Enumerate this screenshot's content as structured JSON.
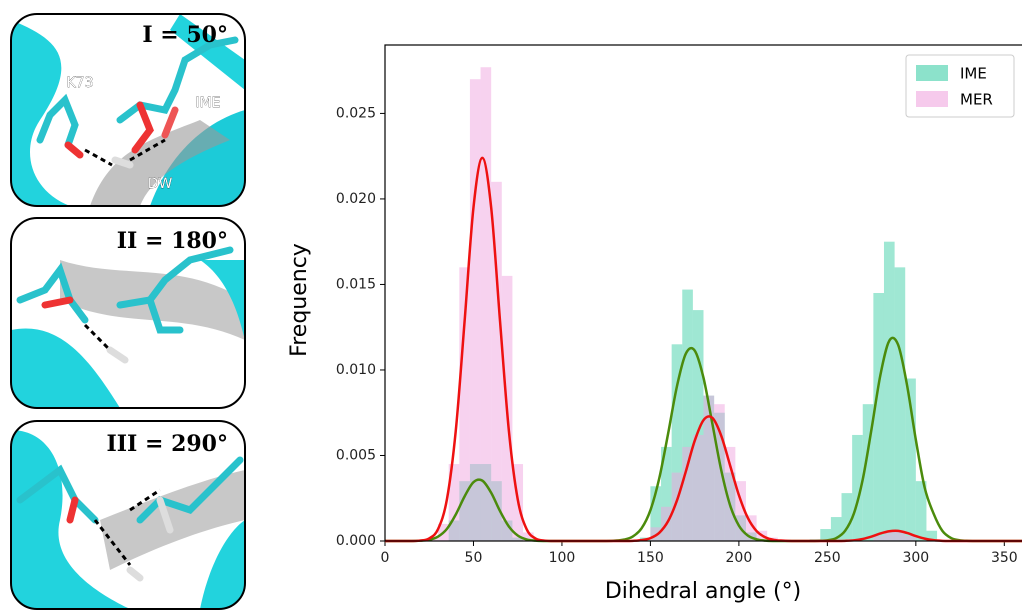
{
  "panels": [
    {
      "title": "I = 50°",
      "labels": [
        "K73",
        "IME",
        "DW"
      ]
    },
    {
      "title": "II = 180°"
    },
    {
      "title": "III = 290°"
    }
  ],
  "chart_data": {
    "type": "histogram",
    "xlabel": "Dihedral angle (°)",
    "ylabel": "Frequency",
    "xlim": [
      0,
      360
    ],
    "ylim": [
      0,
      0.029
    ],
    "xticks": [
      0,
      50,
      100,
      150,
      200,
      250,
      300,
      350
    ],
    "yticks": [
      {
        "value": 0,
        "label": "0.000"
      },
      0.005,
      {
        "value": 0.01,
        "label": "0.010"
      },
      0.015,
      {
        "value": 0.02,
        "label": "0.020"
      },
      0.025
    ],
    "legend": "upper right",
    "bins": [
      24,
      30,
      36,
      42,
      48,
      54,
      60,
      66,
      72,
      78,
      84,
      90,
      96,
      102,
      108,
      114,
      120,
      126,
      132,
      138,
      144,
      150,
      156,
      162,
      168,
      174,
      180,
      186,
      192,
      198,
      204,
      210,
      216,
      222,
      228,
      234,
      240,
      246,
      252,
      258,
      264,
      270,
      276,
      282,
      288,
      294,
      300,
      306,
      312
    ],
    "series": [
      {
        "name": "IME",
        "color": "#3fcfa8",
        "values": [
          0,
          0,
          0.0012,
          0.0035,
          0.0045,
          0.0045,
          0.0035,
          0.0012,
          0.0002,
          0,
          0,
          0,
          0,
          0,
          0,
          0,
          0,
          0,
          0,
          0,
          0.0002,
          0.0032,
          0.0055,
          0.0115,
          0.0147,
          0.0135,
          0.0085,
          0.0075,
          0.004,
          0.0015,
          0.0005,
          0,
          0,
          0,
          0,
          0,
          0.0001,
          0.0007,
          0.0014,
          0.0028,
          0.0062,
          0.008,
          0.0145,
          0.0175,
          0.016,
          0.0095,
          0.0035,
          0.0006
        ]
      },
      {
        "name": "MER",
        "color": "#f0a6e0",
        "values": [
          0.0002,
          0.001,
          0.0045,
          0.016,
          0.027,
          0.0277,
          0.021,
          0.0155,
          0.0045,
          0.0005,
          0,
          0,
          0,
          0,
          0,
          0,
          0,
          0,
          0,
          0,
          0,
          0.0008,
          0.002,
          0.004,
          0.0055,
          0.0062,
          0.0085,
          0.008,
          0.0055,
          0.0035,
          0.0015,
          0.0006,
          0.0002,
          0,
          0,
          0,
          0,
          0,
          0,
          0,
          0,
          0,
          0.0003,
          0.0006,
          0.0006,
          0.0003,
          0,
          0
        ]
      }
    ],
    "curves": {
      "x": [
        0,
        5,
        10,
        15,
        20,
        25,
        30,
        35,
        40,
        45,
        50,
        55,
        60,
        65,
        70,
        75,
        80,
        85,
        90,
        95,
        100,
        105,
        110,
        115,
        120,
        125,
        130,
        135,
        140,
        145,
        150,
        155,
        160,
        165,
        170,
        175,
        180,
        185,
        190,
        195,
        200,
        205,
        210,
        215,
        220,
        225,
        230,
        235,
        240,
        245,
        250,
        255,
        260,
        265,
        270,
        275,
        280,
        285,
        290,
        295,
        300,
        305,
        310,
        315,
        320,
        325,
        330,
        335,
        340,
        345,
        350,
        355,
        360
      ],
      "lines": [
        {
          "color": "#4b8b0c",
          "values": [
            0,
            0,
            0,
            0,
            2e-05,
            7e-05,
            0.00026,
            0.00071,
            0.00155,
            0.00261,
            0.00344,
            0.00353,
            0.00282,
            0.00175,
            0.00085,
            0.00032,
            9e-05,
            2e-05,
            0,
            0,
            0,
            0,
            0,
            0,
            0,
            0,
            2e-05,
            8e-05,
            0.00026,
            0.00074,
            0.0018,
            0.00367,
            0.00628,
            0.00905,
            0.01095,
            0.01114,
            0.00954,
            0.00686,
            0.00415,
            0.0021,
            0.0009,
            0.00032,
            0.0001,
            2e-05,
            0,
            0,
            0,
            0,
            0,
            1e-05,
            4e-05,
            0.00017,
            0.00059,
            0.00161,
            0.0036,
            0.00657,
            0.00972,
            0.01171,
            0.01147,
            0.00913,
            0.00592,
            0.00312,
            0.00161,
            0.00059,
            0.00017,
            4e-05,
            1e-05,
            0,
            0,
            0,
            0,
            0,
            0
          ]
        },
        {
          "color": "#ee1111",
          "values": [
            0,
            0,
            0,
            0,
            2.5e-05,
            0.00015,
            0.0007,
            0.00244,
            0.00645,
            0.01287,
            0.0195,
            0.0224,
            0.0195,
            0.01287,
            0.00645,
            0.00244,
            0.0007,
            0.00015,
            2.5e-05,
            0,
            0,
            0,
            0,
            0,
            0,
            0,
            0,
            0,
            1e-05,
            5e-05,
            0.00017,
            0.00048,
            0.00116,
            0.00237,
            0.00406,
            0.00585,
            0.00707,
            0.0072,
            0.00616,
            0.00443,
            0.00268,
            0.00136,
            0.00058,
            0.00021,
            6e-05,
            2e-05,
            0,
            0,
            0,
            0,
            0,
            0,
            1e-05,
            4e-05,
            0.00012,
            0.00026,
            0.00044,
            0.00057,
            0.00059,
            0.00047,
            0.00029,
            0.00014,
            5e-05,
            1e-05,
            0,
            0,
            0,
            0,
            0,
            0,
            0,
            0,
            0
          ]
        }
      ]
    }
  }
}
